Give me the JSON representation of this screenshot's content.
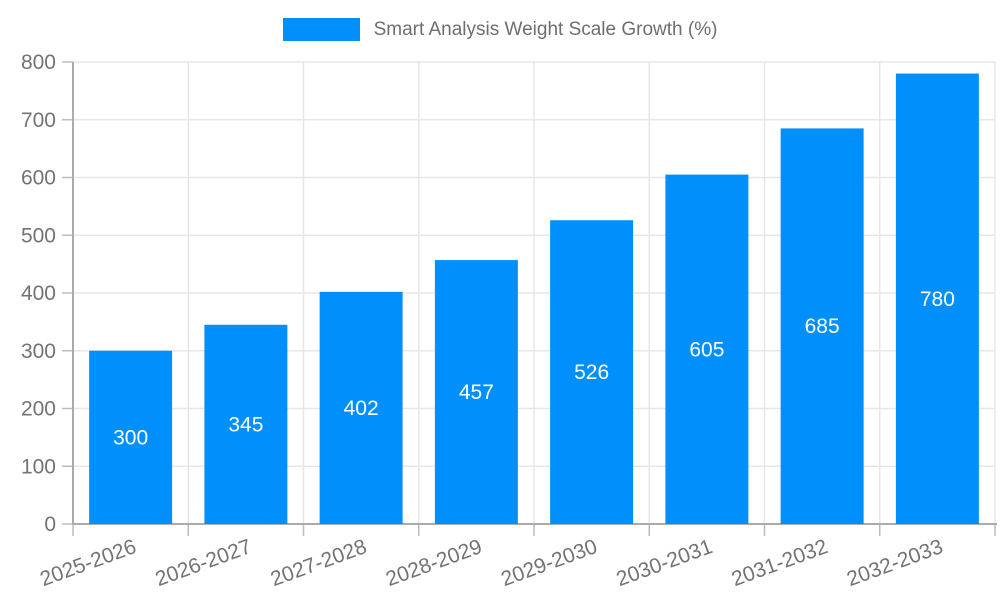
{
  "chart_data": {
    "type": "bar",
    "title": "Smart Analysis Weight Scale Growth (%)",
    "legend": {
      "position": "top",
      "entries": [
        "Smart Analysis Weight Scale Growth (%)"
      ]
    },
    "categories": [
      "2025-2026",
      "2026-2027",
      "2027-2028",
      "2028-2029",
      "2029-2030",
      "2030-2031",
      "2031-2032",
      "2032-2033"
    ],
    "values": [
      300,
      345,
      402,
      457,
      526,
      605,
      685,
      780
    ],
    "value_labels_shown": true,
    "xlabel": "",
    "ylabel": "",
    "ylim": [
      0,
      800
    ],
    "ytick_step": 100,
    "yticks": [
      0,
      100,
      200,
      300,
      400,
      500,
      600,
      700,
      800
    ],
    "grid": true,
    "colors": {
      "bar": "#008FFB",
      "bar_value_label": "#FFFFFF",
      "axis_label": "#737373",
      "legend_label": "#6E6E6E",
      "gridline": "#E7E7E7",
      "axis_line": "#ABABAB",
      "tick": "#BDBDBD"
    }
  }
}
